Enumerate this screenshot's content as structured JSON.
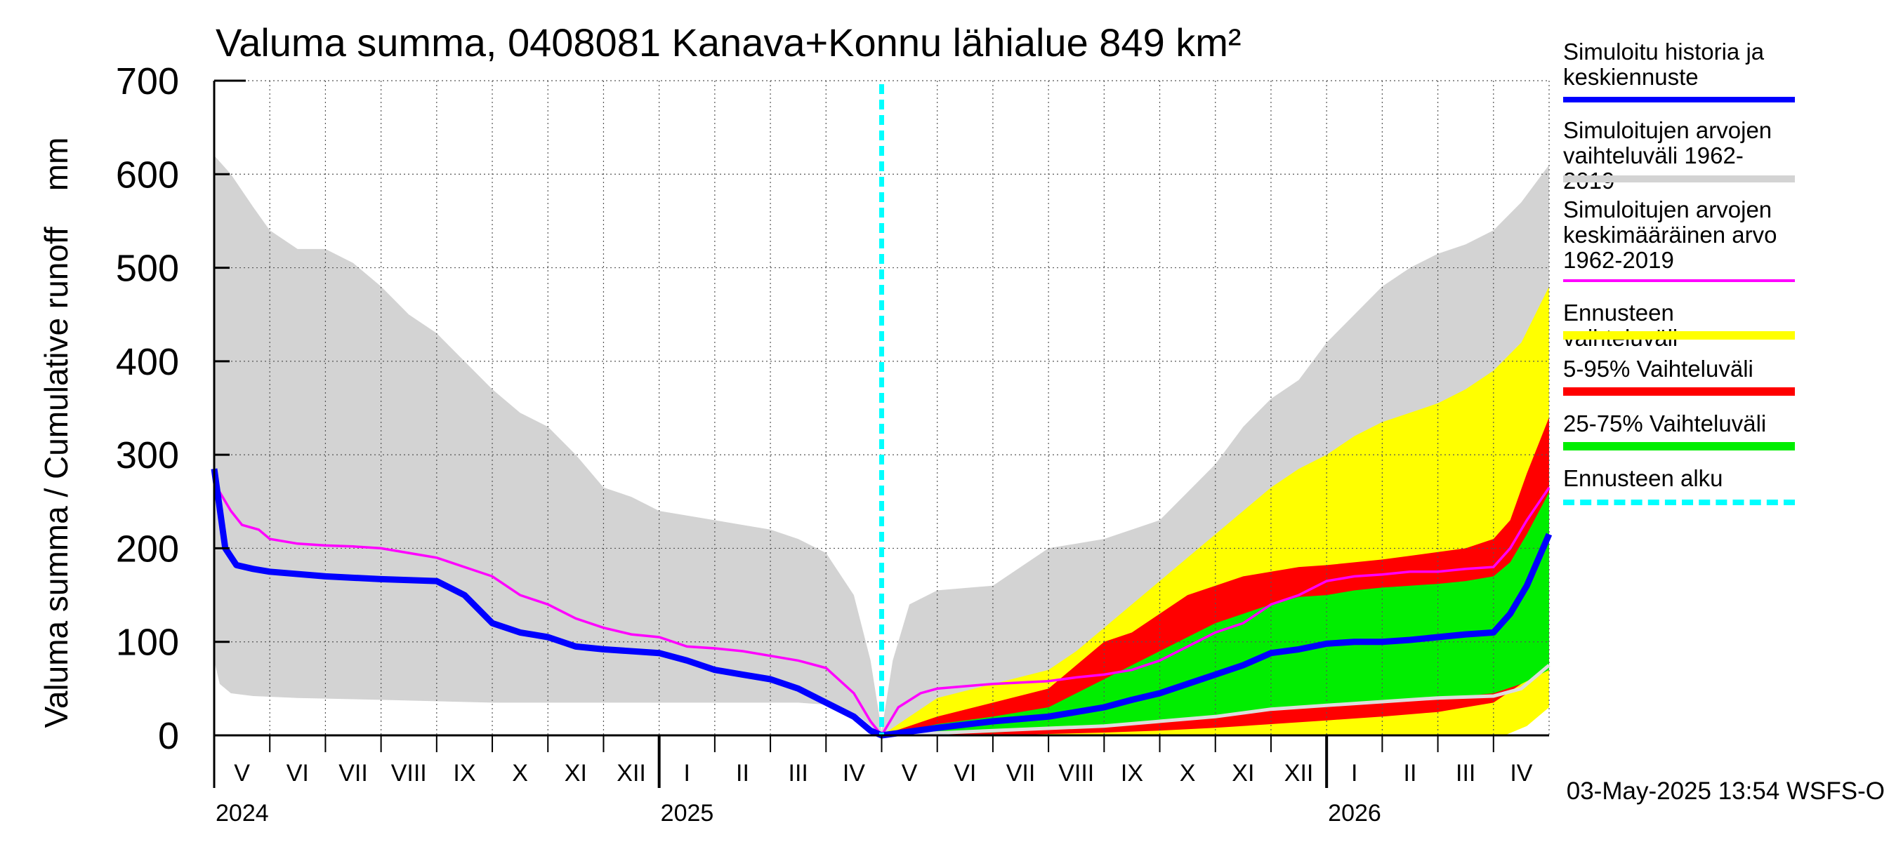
{
  "title": "Valuma summa, 0408081 Kanava+Konnu lähialue 849 km²",
  "timestamp": "03-May-2025 13:54 WSFS-O",
  "colors": {
    "simulated": "#0000ff",
    "hist_range": "#d3d3d3",
    "hist_mean": "#ff00ff",
    "forecast_range": "#ffff00",
    "p5_95": "#ff0000",
    "p25_75": "#00ee00",
    "forecast_start": "#00ffff"
  },
  "legend": [
    {
      "label": "Simuloitu historia ja\nkeskiennuste",
      "color": "#0000ff",
      "style": "solid"
    },
    {
      "label": "Simuloitujen arvojen\nvaihteluväli 1962-2019",
      "color": "#d3d3d3",
      "style": "solid"
    },
    {
      "label": "Simuloitujen arvojen\nkeskimääräinen arvo\n   1962-2019",
      "color": "#ff00ff",
      "style": "thin"
    },
    {
      "label": "Ennusteen vaihteluväli",
      "color": "#ffff00",
      "style": "solid"
    },
    {
      "label": "5-95% Vaihteluväli",
      "color": "#ff0000",
      "style": "solid"
    },
    {
      "label": "25-75% Vaihteluväli",
      "color": "#00ee00",
      "style": "solid"
    },
    {
      "label": "Ennusteen alku",
      "color": "#00ffff",
      "style": "dashed"
    }
  ],
  "chart_data": {
    "type": "area",
    "title": "Valuma summa, 0408081 Kanava+Konnu lähialue 849 km²",
    "ylabel": "Valuma summa / Cumulative runoff    mm",
    "xlabel": "",
    "ylim": [
      0,
      700
    ],
    "xlim": [
      0,
      24
    ],
    "yticks": [
      0,
      100,
      200,
      300,
      400,
      500,
      600,
      700
    ],
    "x_unit": "months since 1 May 2024",
    "month_labels": [
      "V",
      "VI",
      "VII",
      "VIII",
      "IX",
      "X",
      "XI",
      "XII",
      "I",
      "II",
      "III",
      "IV",
      "V",
      "VI",
      "VII",
      "VIII",
      "IX",
      "X",
      "XI",
      "XII",
      "I",
      "II",
      "III",
      "IV"
    ],
    "year_labels": [
      {
        "label": "2024",
        "x": 0
      },
      {
        "label": "2025",
        "x": 8
      },
      {
        "label": "2026",
        "x": 20
      }
    ],
    "forecast_start": 12,
    "grid": true,
    "series": [
      {
        "name": "Simuloitujen arvojen vaihteluväli 1962-2019 (max)",
        "kind": "band-upper",
        "x": [
          0,
          0.3,
          0.7,
          1,
          1.5,
          2,
          2.5,
          3,
          3.5,
          4,
          4.5,
          5,
          5.5,
          6,
          6.5,
          7,
          7.5,
          8,
          8.5,
          9,
          9.5,
          10,
          10.5,
          11,
          11.5,
          11.8,
          12
        ],
        "values": [
          620,
          600,
          565,
          540,
          520,
          520,
          505,
          480,
          450,
          430,
          400,
          370,
          345,
          330,
          300,
          265,
          255,
          240,
          235,
          230,
          225,
          220,
          210,
          195,
          150,
          80,
          5
        ]
      },
      {
        "name": "Simuloitujen arvojen vaihteluväli 1962-2019 (min)",
        "kind": "band-lower",
        "x": [
          0,
          0.1,
          0.3,
          0.7,
          1.5,
          3,
          5,
          7,
          9,
          10.5,
          11.2,
          11.6,
          12
        ],
        "values": [
          80,
          55,
          45,
          42,
          40,
          38,
          35,
          35,
          35,
          35,
          32,
          20,
          0
        ]
      },
      {
        "name": "Simuloitujen arvojen vaihteluväli 1962-2019 (max, next year)",
        "kind": "band-upper",
        "x": [
          12,
          12.2,
          12.5,
          13,
          14,
          15,
          16,
          17,
          17.5,
          18,
          18.5,
          19,
          19.5,
          20,
          20.5,
          21,
          21.5,
          22,
          22.5,
          23,
          23.5,
          24
        ],
        "values": [
          5,
          80,
          140,
          155,
          160,
          200,
          210,
          230,
          260,
          290,
          330,
          360,
          380,
          420,
          450,
          480,
          500,
          515,
          525,
          540,
          570,
          610
        ]
      },
      {
        "name": "Simuloitujen arvojen vaihteluväli 1962-2019 (min, next year)",
        "kind": "band-lower",
        "x": [
          12,
          13,
          14,
          16,
          18,
          19,
          20,
          21,
          22,
          22.5,
          23,
          23.5,
          24
        ],
        "values": [
          0,
          2,
          5,
          10,
          20,
          25,
          28,
          30,
          35,
          35,
          38,
          45,
          70
        ]
      },
      {
        "name": "Ennusteen vaihteluväli (max)",
        "kind": "forecast-upper",
        "x": [
          12,
          13,
          14,
          15,
          15.5,
          16,
          16.5,
          17,
          17.5,
          18,
          18.5,
          19,
          19.5,
          20,
          20.5,
          21,
          21.5,
          22,
          22.5,
          23,
          23.5,
          24
        ],
        "values": [
          0,
          40,
          55,
          70,
          90,
          115,
          140,
          165,
          190,
          215,
          240,
          265,
          285,
          300,
          320,
          335,
          345,
          355,
          370,
          390,
          420,
          480
        ]
      },
      {
        "name": "Ennusteen vaihteluväli (min)",
        "kind": "forecast-lower",
        "x": [
          12,
          14,
          16,
          18,
          20,
          22,
          23.2,
          23.6,
          24
        ],
        "values": [
          0,
          0,
          0,
          0,
          0,
          0,
          0,
          10,
          30
        ]
      },
      {
        "name": "5-95% Vaihteluväli (95%)",
        "kind": "p95",
        "x": [
          12,
          13,
          14,
          15,
          15.5,
          16,
          16.5,
          17,
          17.5,
          18,
          18.5,
          19,
          19.5,
          20,
          20.5,
          21,
          21.5,
          22,
          22.5,
          23,
          23.3,
          23.6,
          24
        ],
        "values": [
          0,
          20,
          35,
          50,
          75,
          100,
          110,
          130,
          150,
          160,
          170,
          175,
          180,
          182,
          185,
          188,
          192,
          196,
          200,
          210,
          230,
          280,
          340
        ]
      },
      {
        "name": "5-95% Vaihteluväli (5%)",
        "kind": "p5",
        "x": [
          12,
          14,
          16,
          17,
          18,
          19,
          20,
          21,
          22,
          22.5,
          23,
          23.5,
          24
        ],
        "values": [
          0,
          0,
          3,
          5,
          8,
          12,
          16,
          20,
          25,
          30,
          35,
          55,
          100
        ]
      },
      {
        "name": "25-75% Vaihteluväli (75%)",
        "kind": "p75",
        "x": [
          12,
          13,
          14,
          15,
          15.5,
          16,
          16.5,
          17,
          17.5,
          18,
          18.5,
          19,
          19.5,
          20,
          20.5,
          21,
          21.5,
          22,
          22.5,
          23,
          23.3,
          23.6,
          24
        ],
        "values": [
          0,
          12,
          20,
          30,
          45,
          60,
          75,
          90,
          105,
          120,
          130,
          140,
          148,
          150,
          155,
          158,
          160,
          162,
          165,
          170,
          185,
          215,
          260
        ]
      },
      {
        "name": "25-75% Vaihteluväli (25%)",
        "kind": "p25",
        "x": [
          12,
          14,
          16,
          17,
          18,
          19,
          20,
          21,
          22,
          22.5,
          23,
          23.5,
          24
        ],
        "values": [
          0,
          3,
          10,
          15,
          20,
          28,
          32,
          36,
          40,
          42,
          45,
          55,
          70
        ]
      },
      {
        "name": "Simuloitujen arvojen keskimääräinen arvo 1962-2019",
        "kind": "mean",
        "x": [
          0,
          0.3,
          0.5,
          0.8,
          1,
          1.5,
          2,
          2.5,
          3,
          3.5,
          4,
          4.5,
          5,
          5.5,
          6,
          6.5,
          7,
          7.5,
          8,
          8.5,
          9,
          9.5,
          10,
          10.5,
          11,
          11.5,
          11.8,
          12,
          12.3,
          12.7,
          13,
          14,
          15,
          15.5,
          16,
          16.5,
          17,
          17.5,
          18,
          18.5,
          19,
          19.5,
          20,
          20.5,
          21,
          21.5,
          22,
          22.5,
          23,
          23.3,
          23.6,
          24
        ],
        "values": [
          270,
          240,
          225,
          220,
          210,
          205,
          203,
          202,
          200,
          195,
          190,
          180,
          170,
          150,
          140,
          125,
          115,
          108,
          105,
          95,
          93,
          90,
          85,
          80,
          72,
          45,
          15,
          0,
          30,
          45,
          50,
          55,
          58,
          62,
          65,
          70,
          80,
          95,
          110,
          120,
          140,
          150,
          165,
          170,
          172,
          175,
          175,
          178,
          180,
          200,
          230,
          265
        ]
      },
      {
        "name": "Simuloitu historia ja keskiennuste",
        "kind": "median",
        "x": [
          0,
          0.2,
          0.4,
          0.7,
          1,
          2,
          3,
          4,
          4.5,
          5,
          5.5,
          6,
          6.5,
          7,
          8,
          8.5,
          9,
          9.5,
          10,
          10.5,
          11,
          11.5,
          11.8,
          12,
          13,
          14,
          15,
          15.5,
          16,
          16.5,
          17,
          17.5,
          18,
          18.5,
          19,
          19.5,
          20,
          20.5,
          21,
          21.5,
          22,
          22.5,
          23,
          23.3,
          23.6,
          24
        ],
        "values": [
          285,
          200,
          182,
          178,
          175,
          170,
          167,
          165,
          150,
          120,
          110,
          105,
          95,
          92,
          88,
          80,
          70,
          65,
          60,
          50,
          35,
          20,
          5,
          0,
          8,
          15,
          20,
          25,
          30,
          38,
          45,
          55,
          65,
          75,
          88,
          92,
          98,
          100,
          100,
          102,
          105,
          108,
          110,
          130,
          160,
          215
        ]
      },
      {
        "name": "Forecast lower trace",
        "kind": "lower-trace",
        "x": [
          12,
          14,
          16,
          18,
          19,
          20,
          21,
          22,
          23,
          23.5,
          24
        ],
        "values": [
          0,
          5,
          10,
          20,
          28,
          32,
          36,
          40,
          42,
          50,
          75
        ]
      }
    ]
  }
}
